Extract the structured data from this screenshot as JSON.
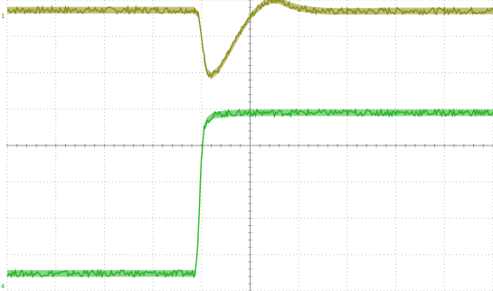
{
  "chart_data": {
    "type": "line",
    "title": "",
    "xlabel": "",
    "ylabel": "",
    "grid": true,
    "xlim": [
      0,
      10
    ],
    "ylim": [
      0,
      8
    ],
    "divisions": {
      "x": 10,
      "y": 8
    },
    "series": [
      {
        "label": "1",
        "color": "#8a8a12",
        "band": 0.18,
        "x": [
          0,
          3.85,
          3.93,
          4.0,
          4.06,
          4.12,
          4.2,
          4.35,
          4.55,
          4.8,
          5.05,
          5.3,
          5.45,
          5.6,
          5.8,
          6.0,
          6.3,
          6.6,
          7.0,
          7.5,
          8.0,
          8.5,
          9.0,
          9.5,
          10
        ],
        "y": [
          7.72,
          7.72,
          7.6,
          7.0,
          6.4,
          6.02,
          5.92,
          6.08,
          6.52,
          7.12,
          7.62,
          7.93,
          8.0,
          7.98,
          7.86,
          7.78,
          7.72,
          7.69,
          7.69,
          7.69,
          7.7,
          7.7,
          7.7,
          7.7,
          7.7
        ]
      },
      {
        "label": "4",
        "color": "#22b322",
        "band": 0.18,
        "x": [
          0,
          3.87,
          3.92,
          3.96,
          4.0,
          4.05,
          4.12,
          4.25,
          4.5,
          5.0,
          6.0,
          7.0,
          8.0,
          9.0,
          10
        ],
        "y": [
          0.48,
          0.48,
          1.3,
          2.5,
          3.7,
          4.5,
          4.7,
          4.83,
          4.88,
          4.9,
          4.9,
          4.9,
          4.9,
          4.9,
          4.9
        ]
      }
    ]
  }
}
